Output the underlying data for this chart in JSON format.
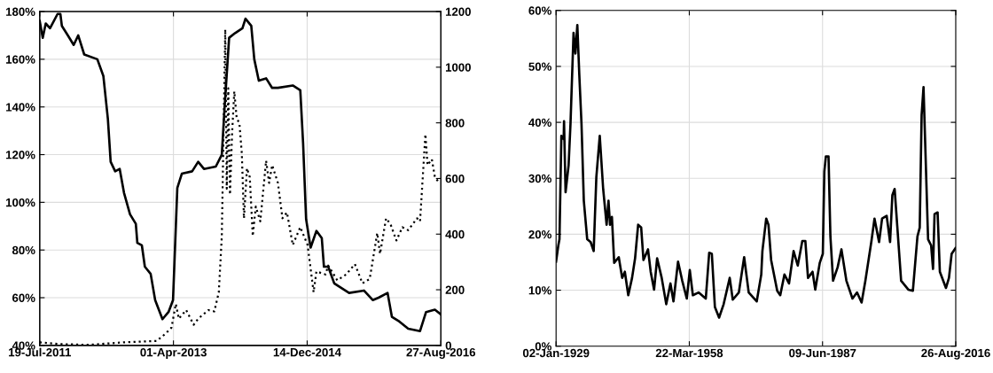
{
  "chart_data": [
    {
      "type": "line",
      "grid": true,
      "tick_labels": "xy",
      "xlim": [
        "2011-07-19",
        "2016-08-27"
      ],
      "xticks": [
        {
          "value": "2011-07-19",
          "label": "19-Jul-2011"
        },
        {
          "value": "2013-04-01",
          "label": "01-Apr-2013"
        },
        {
          "value": "2014-12-14",
          "label": "14-Dec-2014"
        },
        {
          "value": "2016-08-27",
          "label": "27-Aug-2016"
        }
      ],
      "ylim": [
        40,
        180
      ],
      "yticks": [
        {
          "value": 40,
          "label": "40%"
        },
        {
          "value": 60,
          "label": "60%"
        },
        {
          "value": 80,
          "label": "80%"
        },
        {
          "value": 100,
          "label": "100%"
        },
        {
          "value": 120,
          "label": "120%"
        },
        {
          "value": 140,
          "label": "140%"
        },
        {
          "value": 160,
          "label": "160%"
        },
        {
          "value": 180,
          "label": "180%"
        }
      ],
      "y2lim": [
        0,
        1200
      ],
      "y2ticks": [
        0,
        200,
        400,
        600,
        800,
        1000,
        1200
      ],
      "series": [
        {
          "color": "#000000",
          "line_style": "solid",
          "x": [
            "2011-07-19",
            "2011-08-02",
            "2011-08-16",
            "2011-09-05",
            "2011-10-10",
            "2011-10-23",
            "2011-10-30",
            "2011-11-27",
            "2011-12-24",
            "2012-01-14",
            "2012-02-11",
            "2012-04-12",
            "2012-05-10",
            "2012-05-31",
            "2012-06-13",
            "2012-07-04",
            "2012-07-25",
            "2012-08-14",
            "2012-09-11",
            "2012-10-08",
            "2012-10-15",
            "2012-11-05",
            "2012-11-19",
            "2012-12-16",
            "2013-01-06",
            "2013-02-09",
            "2013-03-09",
            "2013-03-30",
            "2013-04-19",
            "2013-05-10",
            "2013-06-27",
            "2013-07-25",
            "2013-08-21",
            "2013-10-15",
            "2013-11-12",
            "2013-11-25",
            "2013-12-16",
            "2014-01-13",
            "2014-02-16",
            "2014-03-02",
            "2014-03-29",
            "2014-04-12",
            "2014-05-03",
            "2014-06-06",
            "2014-07-04",
            "2014-07-31",
            "2014-10-08",
            "2014-11-12",
            "2014-11-25",
            "2014-12-09",
            "2014-12-30",
            "2015-01-26",
            "2015-02-20",
            "2015-03-02",
            "2015-03-22",
            "2015-04-19",
            "2015-06-27",
            "2015-09-04",
            "2015-10-15",
            "2015-11-11",
            "2015-12-23",
            "2016-01-12",
            "2016-02-16",
            "2016-03-28",
            "2016-05-22",
            "2016-06-19",
            "2016-07-30",
            "2016-08-27"
          ],
          "values": [
            176,
            169,
            175,
            173,
            179,
            179,
            174,
            170,
            166,
            170,
            162,
            160,
            153,
            135,
            117,
            113,
            114,
            104,
            95,
            91,
            83,
            82,
            73,
            70,
            59,
            51,
            54,
            59,
            106,
            112,
            113,
            117,
            114,
            115,
            120,
            140,
            169,
            171,
            173,
            177,
            174,
            160,
            151,
            152,
            148,
            148,
            149,
            147,
            125,
            93,
            81,
            88,
            85,
            73,
            73,
            66,
            62,
            63,
            59,
            60,
            62,
            52,
            50,
            47,
            46,
            54,
            55,
            53
          ]
        },
        {
          "color": "#000000",
          "line_style": "dotted",
          "axis": "y2",
          "x": [
            "2011-07-19",
            "2011-10-16",
            "2012-03-02",
            "2012-08-14",
            "2013-01-13",
            "2013-02-23",
            "2013-03-23",
            "2013-04-12",
            "2013-04-26",
            "2013-05-30",
            "2013-07-04",
            "2013-07-25",
            "2013-09-11",
            "2013-10-08",
            "2013-10-29",
            "2013-11-12",
            "2013-11-28",
            "2013-12-05",
            "2013-12-12",
            "2013-12-20",
            "2013-12-30",
            "2014-01-09",
            "2014-01-20",
            "2014-02-02",
            "2014-02-13",
            "2014-02-23",
            "2014-03-09",
            "2014-03-22",
            "2014-04-05",
            "2014-04-19",
            "2014-05-10",
            "2014-06-06",
            "2014-06-20",
            "2014-07-04",
            "2014-07-31",
            "2014-08-21",
            "2014-09-11",
            "2014-10-08",
            "2014-11-12",
            "2014-12-16",
            "2015-01-13",
            "2015-01-26",
            "2015-03-09",
            "2015-03-22",
            "2015-05-03",
            "2015-06-13",
            "2015-07-24",
            "2015-08-28",
            "2015-10-01",
            "2015-11-05",
            "2015-11-18",
            "2015-12-16",
            "2016-01-06",
            "2016-02-02",
            "2016-03-01",
            "2016-03-28",
            "2016-05-08",
            "2016-05-22",
            "2016-06-16",
            "2016-06-26",
            "2016-07-16",
            "2016-07-30",
            "2016-08-20"
          ],
          "values": [
            11,
            5,
            2,
            11,
            16,
            42,
            64,
            149,
            96,
            127,
            74,
            96,
            127,
            122,
            191,
            393,
            1136,
            563,
            924,
            542,
            765,
            913,
            818,
            797,
            690,
            457,
            637,
            605,
            393,
            499,
            446,
            664,
            584,
            648,
            584,
            457,
            478,
            361,
            425,
            361,
            191,
            266,
            255,
            287,
            234,
            255,
            292,
            223,
            239,
            404,
            329,
            457,
            435,
            377,
            425,
            414,
            457,
            446,
            759,
            648,
            669,
            605,
            584
          ]
        }
      ]
    },
    {
      "type": "line",
      "grid": true,
      "xlim": [
        "1929-01-02",
        "2016-08-26"
      ],
      "xticks": [
        {
          "value": "1929-01-02",
          "label": "02-Jan-1929"
        },
        {
          "value": "1958-03-22",
          "label": "22-Mar-1958"
        },
        {
          "value": "1987-06-09",
          "label": "09-Jun-1987"
        },
        {
          "value": "2016-08-26",
          "label": "26-Aug-2016"
        }
      ],
      "ylim": [
        0,
        60
      ],
      "yticks": [
        {
          "value": 0,
          "label": "0%"
        },
        {
          "value": 10,
          "label": "10%"
        },
        {
          "value": 20,
          "label": "20%"
        },
        {
          "value": 30,
          "label": "30%"
        },
        {
          "value": 40,
          "label": "40%"
        },
        {
          "value": 50,
          "label": "50%"
        },
        {
          "value": 60,
          "label": "60%"
        }
      ],
      "series": [
        {
          "color": "#000000",
          "line_style": "solid",
          "x": [
            "1929-01-02",
            "1929-07",
            "1929-10",
            "1930-03",
            "1930-09",
            "1930-10",
            "1931-02",
            "1931-10",
            "1932-03",
            "1932-11",
            "1933-04",
            "1933-09",
            "1934-02",
            "1934-08",
            "1935-02",
            "1935-11",
            "1936-08",
            "1937-04",
            "1937-11",
            "1938-08",
            "1939-05",
            "1940-02",
            "1940-07",
            "1940-11",
            "1941-04",
            "1941-10",
            "1942-10",
            "1943-07",
            "1944-02",
            "1944-11",
            "1945-09",
            "1946-05",
            "1947-01",
            "1947-09",
            "1948-03",
            "1949-03",
            "1949-10",
            "1950-07",
            "1951-03",
            "1952-03",
            "1953-03",
            "1954-02",
            "1954-10",
            "1955-10",
            "1956-09",
            "1957-09",
            "1958-05",
            "1959-01",
            "1960-04",
            "1961-11",
            "1962-08",
            "1963-03",
            "1963-11",
            "1964-10",
            "1965-10",
            "1967-02",
            "1967-10",
            "1969-02",
            "1970-04",
            "1971-04",
            "1973-01",
            "1974-01",
            "1974-04",
            "1975-02",
            "1975-08",
            "1976-03",
            "1977-07",
            "1978-03",
            "1979-02",
            "1980-02",
            "1981-02",
            "1982-01",
            "1983-01",
            "1983-09",
            "1984-04",
            "1985-04",
            "1985-11",
            "1986-11",
            "1987-07",
            "1987-11",
            "1988-03",
            "1988-10",
            "1989-03",
            "1989-10",
            "1990-10",
            "1991-08",
            "1992-09",
            "1994-01",
            "1995-01",
            "1996-01",
            "1996-11",
            "1998-03",
            "1998-11",
            "1999-11",
            "2000-07",
            "2001-07",
            "2002-04",
            "2002-10",
            "2003-04",
            "2004-09",
            "2006-04",
            "2007-04",
            "2008-04",
            "2008-10",
            "2009-03",
            "2009-08",
            "2010-04",
            "2010-08",
            "2011-04",
            "2011-09",
            "2012-01",
            "2012-09",
            "2013-03",
            "2014-07",
            "2015-03",
            "2015-10",
            "2016-08"
          ],
          "values": [
            15.1,
            18.0,
            19.1,
            37.6,
            37.0,
            40.2,
            27.5,
            32.3,
            39.7,
            56.0,
            52.3,
            57.4,
            48.7,
            39.7,
            26.0,
            19.1,
            18.6,
            17.0,
            30.2,
            37.6,
            28.1,
            21.7,
            26.0,
            21.7,
            23.1,
            14.9,
            15.9,
            12.2,
            13.3,
            9.1,
            12.2,
            15.7,
            21.7,
            21.2,
            15.4,
            17.3,
            13.3,
            10.1,
            15.7,
            12.2,
            7.5,
            11.2,
            8.0,
            15.1,
            11.7,
            8.5,
            13.6,
            9.1,
            9.6,
            8.5,
            16.7,
            16.5,
            7.0,
            5.1,
            7.5,
            12.2,
            8.3,
            9.6,
            15.9,
            9.6,
            8.0,
            12.8,
            17.0,
            22.8,
            21.7,
            15.4,
            9.9,
            9.1,
            12.8,
            11.2,
            17.0,
            14.4,
            18.8,
            18.8,
            12.2,
            13.3,
            10.1,
            14.9,
            16.5,
            31.2,
            33.9,
            33.9,
            19.6,
            11.7,
            14.1,
            17.3,
            11.7,
            8.5,
            9.6,
            7.8,
            11.7,
            18.8,
            22.8,
            18.6,
            22.8,
            23.3,
            18.6,
            27.0,
            28.1,
            11.7,
            10.1,
            9.9,
            19.6,
            21.2,
            41.3,
            46.3,
            28.1,
            19.1,
            18.0,
            13.8,
            23.6,
            23.9,
            13.3,
            10.4,
            12.2,
            16.5,
            17.5
          ]
        }
      ]
    }
  ]
}
